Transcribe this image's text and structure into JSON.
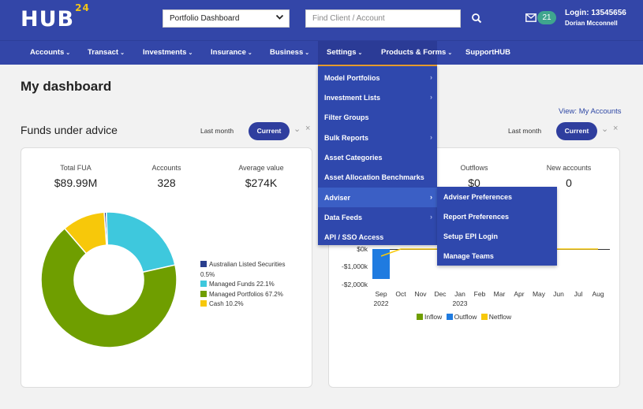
{
  "header": {
    "logo_text": "HUB",
    "logo_super": "24",
    "dashboard_select": "Portfolio Dashboard",
    "search_placeholder": "Find Client / Account",
    "mail_count": "21",
    "login_label": "Login: 13545656",
    "user_name": "Dorian Mcconnell"
  },
  "nav": [
    {
      "label": "Accounts"
    },
    {
      "label": "Transact"
    },
    {
      "label": "Investments"
    },
    {
      "label": "Insurance"
    },
    {
      "label": "Business"
    },
    {
      "label": "Settings"
    },
    {
      "label": "Products & Forms"
    },
    {
      "label": "SupportHUB"
    }
  ],
  "page_title": "My dashboard",
  "view_link": "View: My Accounts",
  "funds": {
    "title": "Funds under advice",
    "period_label": "Last month",
    "period_current": "Current",
    "stats": [
      {
        "label": "Total FUA",
        "value": "$89.99M"
      },
      {
        "label": "Accounts",
        "value": "328"
      },
      {
        "label": "Average value",
        "value": "$274K"
      }
    ],
    "legend": [
      {
        "label": "Australian Listed Securities",
        "sub": "0.5%",
        "color": "#2a3f8e"
      },
      {
        "label": "Managed Funds 22.1%",
        "color": "#3ec8dd"
      },
      {
        "label": "Managed Portfolios 67.2%",
        "color": "#6f9e00"
      },
      {
        "label": "Cash 10.2%",
        "color": "#f7c80a"
      }
    ]
  },
  "flows": {
    "period_label": "Last month",
    "period_current": "Current",
    "stats": [
      {
        "label": "Outflows",
        "value": "$0"
      },
      {
        "label": "New accounts",
        "value": "0"
      }
    ],
    "legend": [
      {
        "label": "Inflow",
        "color": "#6f9e00"
      },
      {
        "label": "Outflow",
        "color": "#1f7be0"
      },
      {
        "label": "Netflow",
        "color": "#f7c80a"
      }
    ]
  },
  "settings_menu": {
    "items": [
      {
        "label": "Model Portfolios",
        "arrow": "›"
      },
      {
        "label": "Investment Lists",
        "arrow": "›"
      },
      {
        "label": "Filter Groups",
        "arrow": ""
      },
      {
        "label": "Bulk Reports",
        "arrow": "›"
      },
      {
        "label": "Asset Categories",
        "arrow": ""
      },
      {
        "label": "Asset Allocation Benchmarks",
        "arrow": ""
      },
      {
        "label": "Adviser",
        "arrow": "›"
      },
      {
        "label": "Data Feeds",
        "arrow": "›"
      },
      {
        "label": "API / SSO Access",
        "arrow": ""
      }
    ],
    "adviser_submenu": [
      {
        "label": "Adviser Preferences"
      },
      {
        "label": "Report Preferences"
      },
      {
        "label": "Setup EPI Login"
      },
      {
        "label": "Manage Teams"
      }
    ]
  },
  "chart_data": [
    {
      "type": "pie",
      "title": "",
      "categories": [
        "Australian Listed Securities",
        "Managed Funds",
        "Managed Portfolios",
        "Cash"
      ],
      "values": [
        0.5,
        22.1,
        67.2,
        10.2
      ],
      "colors": [
        "#2a3f8e",
        "#3ec8dd",
        "#6f9e00",
        "#f7c80a"
      ],
      "donut": true,
      "legend": "right"
    },
    {
      "type": "bar",
      "title": "",
      "categories": [
        "Sep 2022",
        "Oct",
        "Nov",
        "Dec",
        "Jan 2023",
        "Feb",
        "Mar",
        "Apr",
        "May",
        "Jun",
        "Jul",
        "Aug"
      ],
      "y_ticks": [
        "$0k",
        "-$1,000k",
        "-$2,000k"
      ],
      "ylim": [
        -2000,
        0
      ],
      "series": [
        {
          "name": "Inflow",
          "values": [
            0,
            0,
            0,
            0,
            0,
            0,
            0,
            0,
            0,
            0,
            0,
            0
          ]
        },
        {
          "name": "Outflow",
          "values": [
            -1700,
            0,
            0,
            0,
            0,
            0,
            0,
            0,
            0,
            0,
            0,
            0
          ]
        },
        {
          "name": "Netflow",
          "values": [
            -400,
            0,
            0,
            0,
            0,
            0,
            0,
            0,
            0,
            0,
            0,
            0
          ]
        }
      ],
      "legend": "bottom"
    }
  ]
}
